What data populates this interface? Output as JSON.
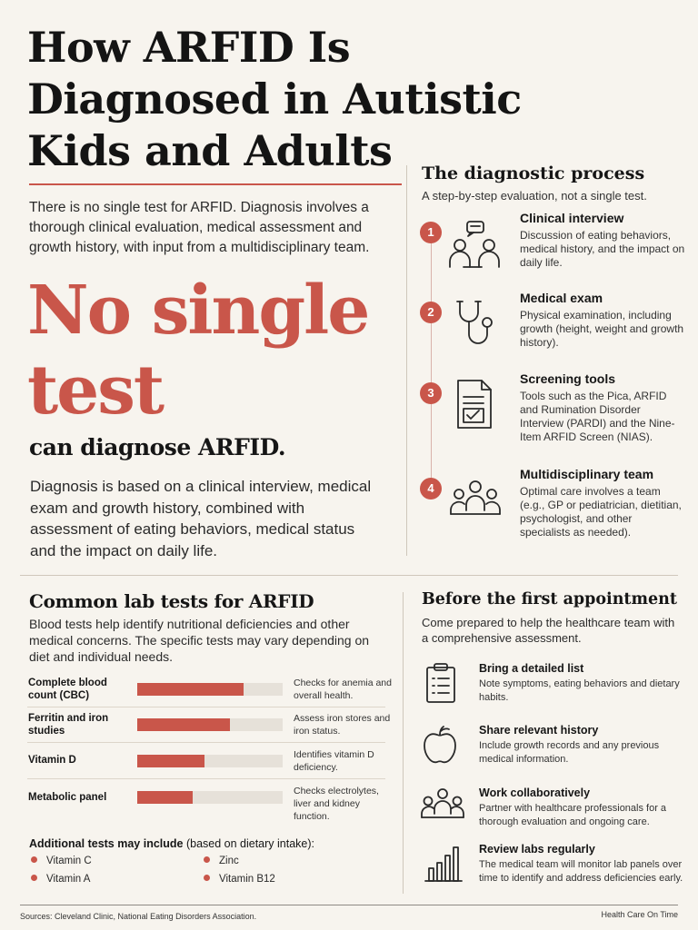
{
  "title": "How ARFID Is Diagnosed in Autistic Kids and Adults",
  "intro": "There is no single test for ARFID. Diagnosis involves a thorough clinical evaluation, medical assessment and growth history, with input from a multidisciplinary team.",
  "hero": {
    "big_line1": "No single",
    "big_line2": "test",
    "sub": "can diagnose ARFID.",
    "body": "Diagnosis is based on a clinical interview, medical exam and growth history, combined with assessment of eating behaviors, medical status and the impact on daily life."
  },
  "process": {
    "title": "The diagnostic process",
    "subtitle": "A step-by-step evaluation, not a single test.",
    "steps": [
      {
        "num": "1",
        "icon": "clinical-interview-icon",
        "title": "Clinical interview",
        "desc": "Discussion of eating behaviors, medical history, and the impact on daily life."
      },
      {
        "num": "2",
        "icon": "stethoscope-icon",
        "title": "Medical exam",
        "desc": "Physical examination, including growth (height, weight and growth history)."
      },
      {
        "num": "3",
        "icon": "document-check-icon",
        "title": "Screening tools",
        "desc": "Tools such as the Pica, ARFID and Rumination Disorder Interview (PARDI) and the Nine-Item ARFID Screen (NIAS)."
      },
      {
        "num": "4",
        "icon": "team-icon",
        "title": "Multidisciplinary team",
        "desc": "Optimal care involves a team (e.g., GP or pediatrician, dietitian, psychologist, and other specialists as needed)."
      }
    ]
  },
  "labs": {
    "title": "Common lab tests for ARFID",
    "intro": "Blood tests help identify nutritional deficiencies and other medical concerns. The specific tests may vary depending on diet and individual needs.",
    "tests": [
      {
        "name": "Complete blood count (CBC)",
        "level": 0.73,
        "desc": "Checks for anemia and overall health."
      },
      {
        "name": "Ferritin and iron studies",
        "level": 0.64,
        "desc": "Assess iron stores and iron status."
      },
      {
        "name": "Vitamin D",
        "level": 0.46,
        "desc": "Identifies vitamin D deficiency."
      },
      {
        "name": "Metabolic panel",
        "level": 0.38,
        "desc": "Checks electrolytes, liver and kidney function."
      }
    ],
    "additional_title": "Additional tests may include",
    "additional_note": " (based on dietary intake):",
    "additional": [
      "Vitamin C",
      "Zinc",
      "Vitamin A",
      "Vitamin B12"
    ]
  },
  "before": {
    "title": "Before the first appointment",
    "subtitle": "Come prepared to help the healthcare team with a comprehensive assessment.",
    "items": [
      {
        "icon": "clipboard-list-icon",
        "title": "Bring a detailed list",
        "desc": "Note symptoms, eating behaviors and dietary habits."
      },
      {
        "icon": "apple-icon",
        "title": "Share relevant history",
        "desc": "Include growth records and any previous medical information."
      },
      {
        "icon": "people-icon",
        "title": "Work collaboratively",
        "desc": "Partner with healthcare professionals for a thorough evaluation and ongoing care."
      },
      {
        "icon": "bar-chart-icon",
        "title": "Review labs regularly",
        "desc": "The medical team will monitor lab panels over time to identify and address deficiencies early."
      }
    ]
  },
  "footer": {
    "sources": "Sources: Cleveland Clinic, National Eating Disorders Association.",
    "brand": "Health Care On Time"
  },
  "colors": {
    "accent": "#c9564a",
    "background": "#f7f4ee",
    "text": "#161616"
  }
}
